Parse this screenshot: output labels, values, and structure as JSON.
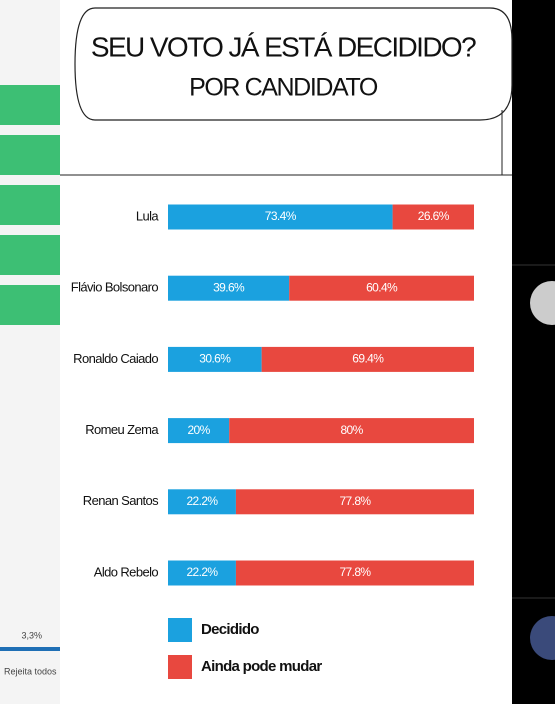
{
  "side_panel": {
    "value": "3,3%",
    "label": "Rejeita todos"
  },
  "chart_data": {
    "type": "stacked-bar-horizontal",
    "title": "SEU VOTO JÁ ESTÁ DECIDIDO?",
    "subtitle": "POR CANDIDATO",
    "categories": [
      "Lula",
      "Flávio Bolsonaro",
      "Ronaldo Caiado",
      "Romeu Zema",
      "Renan Santos",
      "Aldo Rebelo"
    ],
    "xlim": [
      0,
      100
    ],
    "series": [
      {
        "name": "Decidido",
        "color": "#1ba1df",
        "values": [
          73.4,
          39.6,
          30.6,
          20,
          22.2,
          22.2
        ],
        "value_labels": [
          "73.4%",
          "39.6%",
          "30.6%",
          "20%",
          "22.2%",
          "22.2%"
        ]
      },
      {
        "name": "Ainda pode mudar",
        "color": "#e8483f",
        "values": [
          26.6,
          60.4,
          69.4,
          80,
          77.8,
          77.8
        ],
        "value_labels": [
          "26.6%",
          "60.4%",
          "69.4%",
          "80%",
          "77.8%",
          "77.8%"
        ]
      }
    ],
    "legend": "bottom"
  }
}
